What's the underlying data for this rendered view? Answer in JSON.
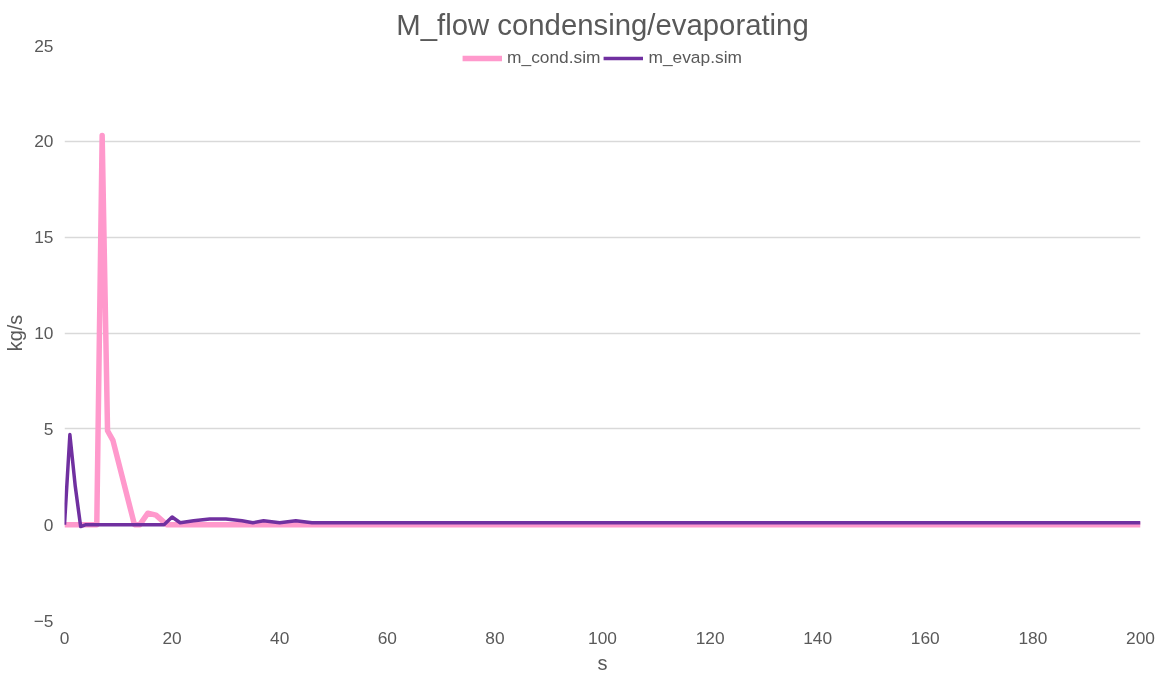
{
  "chart_data": {
    "type": "line",
    "title": "M_flow condensing/evaporating",
    "xlabel": "s",
    "ylabel": "kg/s",
    "xlim": [
      0,
      200
    ],
    "ylim": [
      -5,
      25
    ],
    "xticks": [
      0,
      20,
      40,
      60,
      80,
      100,
      120,
      140,
      160,
      180,
      200
    ],
    "yticks": [
      -5,
      0,
      5,
      10,
      15,
      20,
      25
    ],
    "grid": "y",
    "legend": "top",
    "marker": "none",
    "line_style": "solid",
    "series": [
      {
        "name": "m_cond.sim",
        "color": "#ff99cc",
        "x": [
          0,
          6,
          7,
          8,
          9,
          13,
          14,
          15.5,
          17,
          19,
          20,
          40,
          100,
          200
        ],
        "values": [
          0,
          0,
          20.3,
          4.9,
          4.4,
          0,
          0,
          0.6,
          0.5,
          0,
          0,
          0,
          0,
          0
        ]
      },
      {
        "name": "m_evap.sim",
        "color": "#7030a0",
        "x": [
          0,
          1,
          2,
          3,
          4,
          18.5,
          20,
          21.5,
          24,
          27,
          30,
          33,
          35,
          37,
          40,
          43,
          46,
          50,
          60,
          100,
          200
        ],
        "values": [
          0,
          4.7,
          2,
          -0.1,
          0,
          0,
          0.4,
          0.1,
          0.2,
          0.3,
          0.3,
          0.2,
          0.1,
          0.2,
          0.1,
          0.2,
          0.1,
          0.1,
          0.1,
          0.1,
          0.1
        ]
      }
    ]
  }
}
